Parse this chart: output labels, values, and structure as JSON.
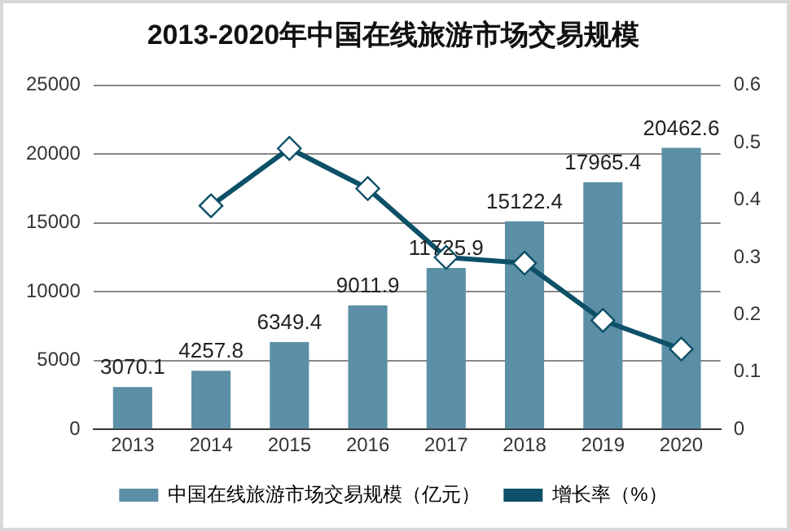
{
  "chart_data": {
    "type": "bar",
    "title": "2013-2020年中国在线旅游市场交易规模",
    "categories": [
      "2013",
      "2014",
      "2015",
      "2016",
      "2017",
      "2018",
      "2019",
      "2020"
    ],
    "series": [
      {
        "name": "中国在线旅游市场交易规模（亿元）",
        "color": "#5b8fa6",
        "values": [
          3070.1,
          4257.8,
          6349.4,
          9011.9,
          11725.9,
          15122.4,
          17965.4,
          20462.6
        ],
        "value_labels": [
          "3070.1",
          "4257.8",
          "6349.4",
          "9011.9",
          "11725.9",
          "15122.4",
          "17965.4",
          "20462.6"
        ]
      },
      {
        "name": "增长率（%）",
        "type": "line",
        "axis": "y2",
        "color": "#0d5068",
        "marker": "diamond",
        "values": [
          null,
          0.39,
          0.49,
          0.42,
          0.3,
          0.29,
          0.19,
          0.14
        ]
      }
    ],
    "ylim": [
      0,
      25000
    ],
    "yticks": [
      0,
      5000,
      10000,
      15000,
      20000,
      25000
    ],
    "y2lim": [
      0,
      0.6
    ],
    "y2ticks": [
      0,
      0.1,
      0.2,
      0.3,
      0.4,
      0.5,
      0.6
    ],
    "grid": "y",
    "legend": "bottom"
  }
}
